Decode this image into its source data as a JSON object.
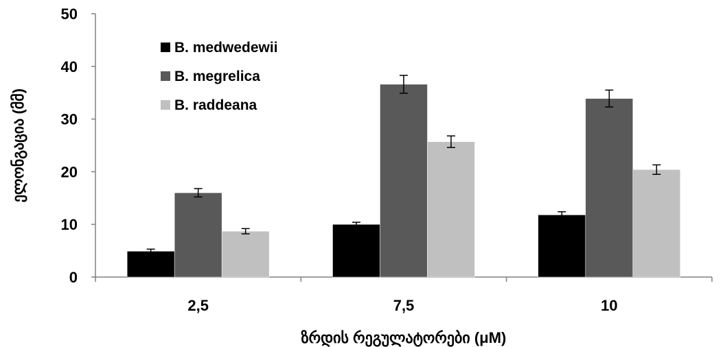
{
  "chart_data": {
    "type": "bar",
    "categories": [
      "2,5",
      "7,5",
      "10"
    ],
    "series": [
      {
        "name": "B. medwedewii",
        "color": "#000000",
        "values": [
          4.9,
          10.0,
          11.8
        ],
        "errors": [
          0.4,
          0.4,
          0.6
        ]
      },
      {
        "name": "B. megrelica",
        "color": "#595959",
        "values": [
          16.0,
          36.6,
          33.9
        ],
        "errors": [
          0.8,
          1.7,
          1.6
        ]
      },
      {
        "name": "B. raddeana",
        "color": "#c0c0c0",
        "values": [
          8.7,
          25.7,
          20.4
        ],
        "errors": [
          0.5,
          1.1,
          0.9
        ]
      }
    ],
    "xlabel": "ზრდის რეგულატორები (μM)",
    "ylabel": "ელონგაცია (მმ)",
    "ylim": [
      0,
      50
    ],
    "yticks": [
      "0",
      "10",
      "20",
      "30",
      "40",
      "50"
    ],
    "grid": false,
    "legend_position": "top-left"
  }
}
